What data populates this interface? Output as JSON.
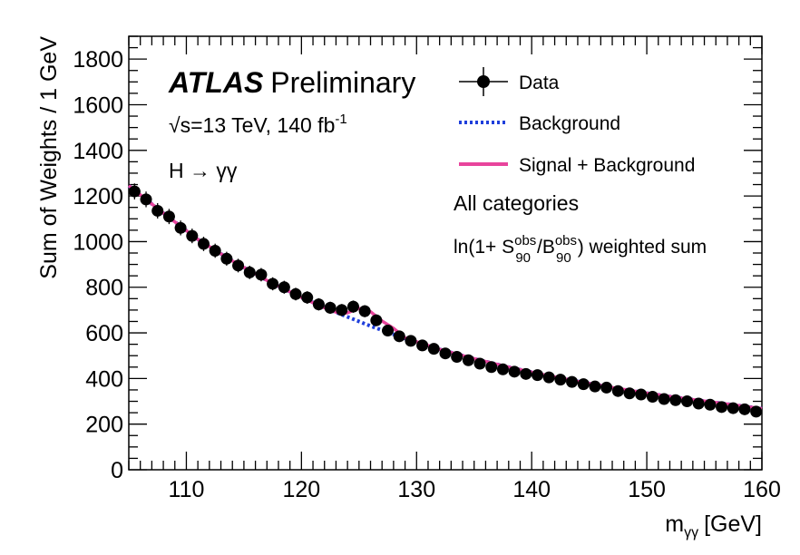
{
  "chart_data": {
    "type": "scatter",
    "xlabel_main": "m",
    "xlabel_sub": "γγ",
    "xlabel_unit": "[GeV]",
    "ylabel": "Sum of Weights / 1 GeV",
    "xlim": [
      105,
      160
    ],
    "ylim": [
      0,
      1900
    ],
    "x_ticks": [
      110,
      120,
      130,
      140,
      150,
      160
    ],
    "y_ticks": [
      0,
      200,
      400,
      600,
      800,
      1000,
      1200,
      1400,
      1600,
      1800
    ],
    "labels": {
      "atlas": "ATLAS",
      "preliminary": "Preliminary",
      "energy_prefix": "√s=13 TeV, 140 fb",
      "energy_sup": "-1",
      "process": "H → γγ",
      "categories": "All categories",
      "weight_prefix": "ln(1+ S",
      "weight_s_sup": "obs",
      "weight_s_sub": "90",
      "weight_mid": "/B",
      "weight_b_sup": "obs",
      "weight_b_sub": "90",
      "weight_suffix": ") weighted sum"
    },
    "legend_position": "top-right",
    "series": [
      {
        "name": "Data",
        "style": "markers-with-errors",
        "color": "#000000",
        "x": [
          105.5,
          106.5,
          107.5,
          108.5,
          109.5,
          110.5,
          111.5,
          112.5,
          113.5,
          114.5,
          115.5,
          116.5,
          117.5,
          118.5,
          119.5,
          120.5,
          121.5,
          122.5,
          123.5,
          124.5,
          125.5,
          126.5,
          127.5,
          128.5,
          129.5,
          130.5,
          131.5,
          132.5,
          133.5,
          134.5,
          135.5,
          136.5,
          137.5,
          138.5,
          139.5,
          140.5,
          141.5,
          142.5,
          143.5,
          144.5,
          145.5,
          146.5,
          147.5,
          148.5,
          149.5,
          150.5,
          151.5,
          152.5,
          153.5,
          154.5,
          155.5,
          156.5,
          157.5,
          158.5,
          159.5
        ],
        "y": [
          1220,
          1185,
          1135,
          1110,
          1060,
          1025,
          990,
          960,
          925,
          895,
          865,
          855,
          815,
          800,
          770,
          755,
          725,
          710,
          700,
          715,
          695,
          655,
          610,
          585,
          565,
          545,
          530,
          510,
          495,
          480,
          465,
          450,
          440,
          430,
          420,
          415,
          405,
          395,
          385,
          375,
          365,
          360,
          345,
          335,
          330,
          320,
          310,
          305,
          300,
          290,
          285,
          275,
          270,
          265,
          255
        ]
      },
      {
        "name": "Background",
        "style": "dotted-line",
        "color": "#1f3fdb",
        "x": [
          105,
          108,
          111,
          114,
          117,
          120,
          123,
          126,
          129,
          132,
          135,
          138,
          141,
          144,
          147,
          150,
          153,
          156,
          160
        ],
        "y": [
          1245,
          1125,
          1010,
          915,
          830,
          755,
          690,
          630,
          575,
          528,
          487,
          450,
          417,
          387,
          360,
          336,
          314,
          295,
          268
        ]
      },
      {
        "name": "Signal + Background",
        "style": "solid-line",
        "color": "#e8449c",
        "x": [
          105,
          108,
          111,
          114,
          117,
          120,
          122,
          123,
          123.5,
          124,
          124.5,
          125,
          125.5,
          126,
          126.5,
          127,
          128,
          129,
          132,
          135,
          138,
          141,
          144,
          147,
          150,
          153,
          156,
          160
        ],
        "y": [
          1245,
          1125,
          1010,
          915,
          830,
          755,
          710,
          691,
          685,
          688,
          698,
          707,
          705,
          693,
          672,
          652,
          620,
          578,
          528,
          487,
          450,
          417,
          387,
          360,
          336,
          314,
          295,
          268
        ]
      }
    ]
  }
}
